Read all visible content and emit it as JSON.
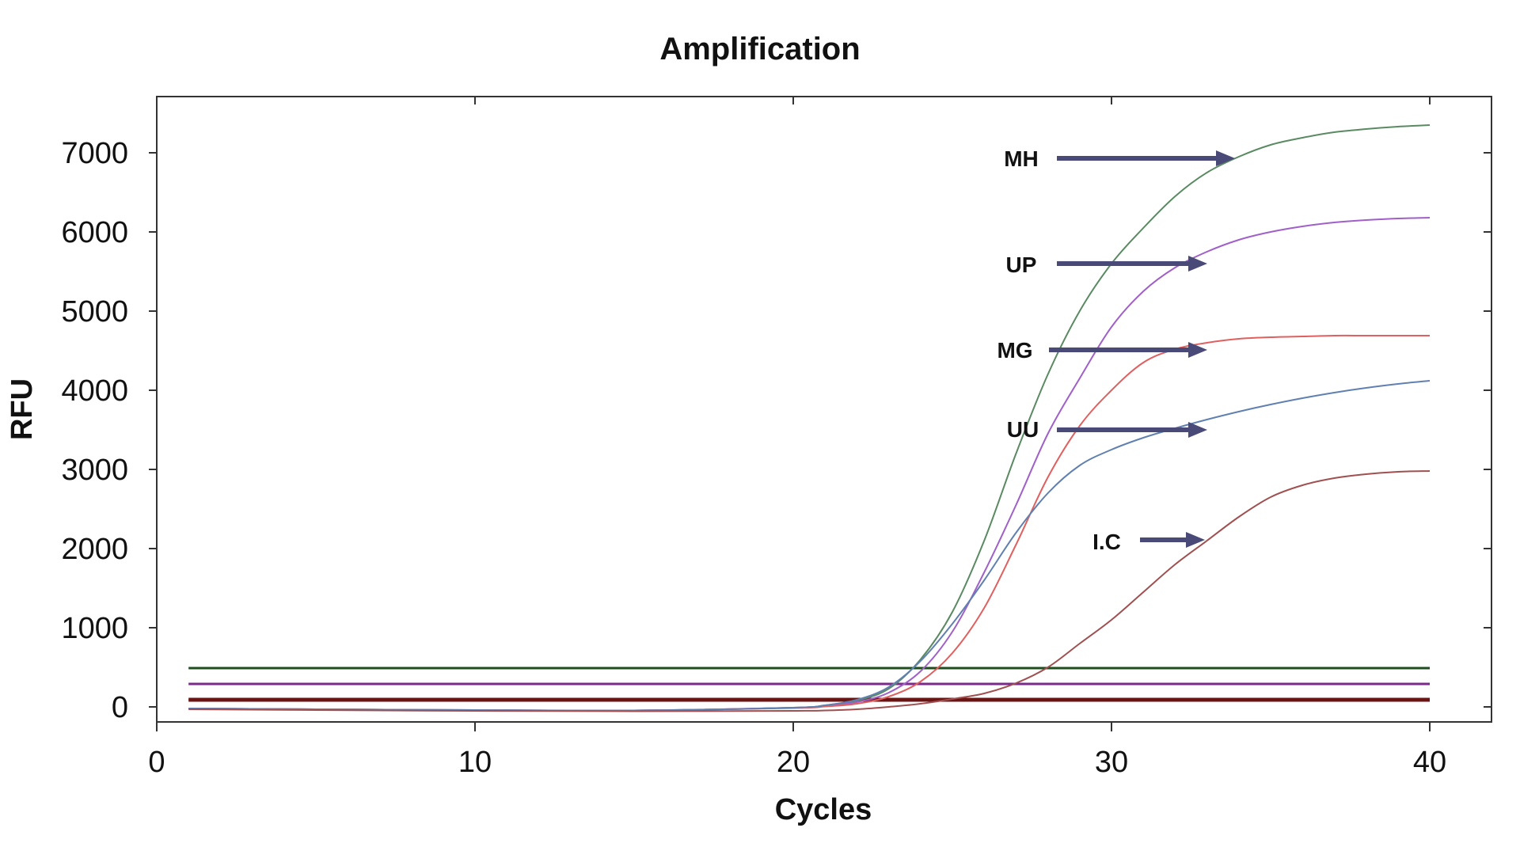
{
  "chart_data": {
    "type": "line",
    "title": "Amplification",
    "xlabel": "Cycles",
    "ylabel": "RFU",
    "xlim": [
      0,
      42
    ],
    "ylim": [
      -180,
      7700
    ],
    "xticks": [
      0,
      10,
      20,
      30,
      40
    ],
    "yticks": [
      0,
      1000,
      2000,
      3000,
      4000,
      5000,
      6000,
      7000
    ],
    "grid": false,
    "legend": "none",
    "series": [
      {
        "color": "#5a8a62",
        "x": [
          1,
          5,
          10,
          15,
          20,
          21,
          22,
          23,
          24,
          25,
          26,
          27,
          28,
          29,
          30,
          31,
          32,
          33,
          34,
          35,
          36,
          37,
          38,
          39,
          40
        ],
        "y": [
          -20,
          -30,
          -40,
          -45,
          -10,
          20,
          80,
          230,
          600,
          1200,
          2100,
          3200,
          4200,
          5000,
          5600,
          6050,
          6450,
          6750,
          6950,
          7100,
          7190,
          7260,
          7300,
          7330,
          7350
        ]
      },
      {
        "color": "#a060c8",
        "x": [
          1,
          5,
          10,
          15,
          20,
          21,
          22,
          23,
          24,
          25,
          26,
          27,
          28,
          29,
          30,
          31,
          32,
          33,
          34,
          35,
          36,
          37,
          38,
          39,
          40
        ],
        "y": [
          -20,
          -30,
          -40,
          -45,
          -10,
          10,
          60,
          180,
          450,
          950,
          1700,
          2550,
          3450,
          4150,
          4800,
          5250,
          5550,
          5750,
          5900,
          6000,
          6070,
          6120,
          6150,
          6170,
          6180
        ]
      },
      {
        "color": "#e06060",
        "x": [
          1,
          5,
          10,
          15,
          20,
          21,
          22,
          23,
          24,
          25,
          26,
          27,
          28,
          29,
          30,
          31,
          32,
          33,
          34,
          35,
          36,
          37,
          38,
          39,
          40
        ],
        "y": [
          -20,
          -30,
          -40,
          -45,
          -15,
          5,
          40,
          130,
          320,
          680,
          1250,
          2050,
          2900,
          3550,
          4000,
          4350,
          4520,
          4600,
          4650,
          4670,
          4680,
          4690,
          4690,
          4690,
          4690
        ]
      },
      {
        "color": "#6080b0",
        "x": [
          1,
          5,
          10,
          15,
          20,
          21,
          22,
          23,
          24,
          25,
          26,
          27,
          28,
          29,
          30,
          31,
          32,
          33,
          34,
          35,
          36,
          37,
          38,
          39,
          40
        ],
        "y": [
          -20,
          -30,
          -40,
          -45,
          -10,
          20,
          90,
          250,
          580,
          1050,
          1600,
          2200,
          2700,
          3050,
          3250,
          3400,
          3520,
          3630,
          3730,
          3820,
          3900,
          3970,
          4030,
          4080,
          4120
        ]
      },
      {
        "color": "#a05050",
        "x": [
          1,
          5,
          10,
          15,
          20,
          21,
          22,
          23,
          24,
          25,
          26,
          27,
          28,
          29,
          30,
          31,
          32,
          33,
          34,
          35,
          36,
          37,
          38,
          39,
          40
        ],
        "y": [
          -30,
          -40,
          -50,
          -55,
          -50,
          -45,
          -30,
          0,
          40,
          100,
          170,
          300,
          500,
          800,
          1100,
          1450,
          1800,
          2100,
          2400,
          2650,
          2800,
          2890,
          2940,
          2970,
          2980
        ]
      }
    ],
    "thresholds": [
      {
        "y": 490,
        "color": "#1e4d1e"
      },
      {
        "y": 290,
        "color": "#7a2a8a"
      },
      {
        "y": 100,
        "color": "#6b1414"
      },
      {
        "y": 80,
        "color": "#6b1414"
      }
    ],
    "annotations": [
      {
        "text": "MH",
        "color": "#4a4a78"
      },
      {
        "text": "UP",
        "color": "#4a4a78"
      },
      {
        "text": "MG",
        "color": "#4a4a78"
      },
      {
        "text": "UU",
        "color": "#4a4a78"
      },
      {
        "text": "I.C",
        "color": "#4a4a78"
      }
    ]
  }
}
